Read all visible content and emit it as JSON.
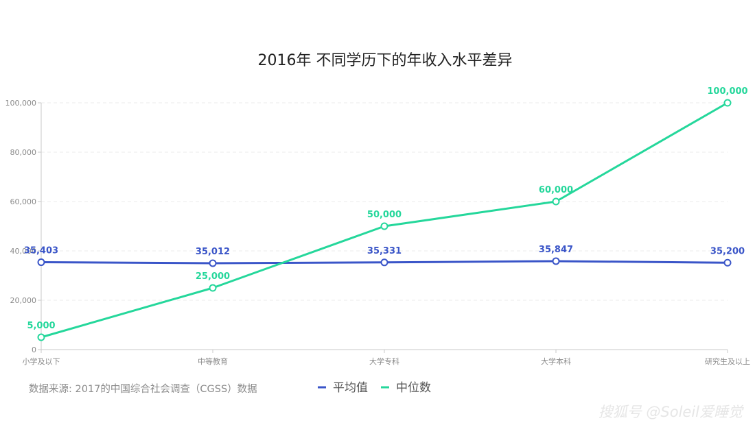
{
  "chart_data": {
    "type": "line",
    "title": "2016年 不同学历下的年收入水平差异",
    "categories": [
      "小学及以下",
      "中等教育",
      "大学专科",
      "大学本科",
      "研究生及以上"
    ],
    "series": [
      {
        "name": "平均值",
        "values": [
          35403,
          35012,
          35331,
          35847,
          35200
        ],
        "labels": [
          "35,403",
          "35,012",
          "35,331",
          "35,847",
          "35,200"
        ],
        "color": "#3a55c8"
      },
      {
        "name": "中位数",
        "values": [
          5000,
          25000,
          50000,
          60000,
          100000
        ],
        "labels": [
          "5,000",
          "25,000",
          "50,000",
          "60,000",
          "100,000"
        ],
        "color": "#25d79b"
      }
    ],
    "y_ticks": [
      0,
      20000,
      40000,
      60000,
      80000,
      100000
    ],
    "y_tick_labels": [
      "0",
      "20,000",
      "40,000",
      "60,000",
      "80,000",
      "100,000"
    ],
    "ylim": [
      0,
      100000
    ],
    "grid": true,
    "legend_position": "bottom"
  },
  "source_note": "数据来源: 2017的中国综合社会调查（CGSS）数据",
  "watermark": "搜狐号 @Soleil爱睡觉"
}
